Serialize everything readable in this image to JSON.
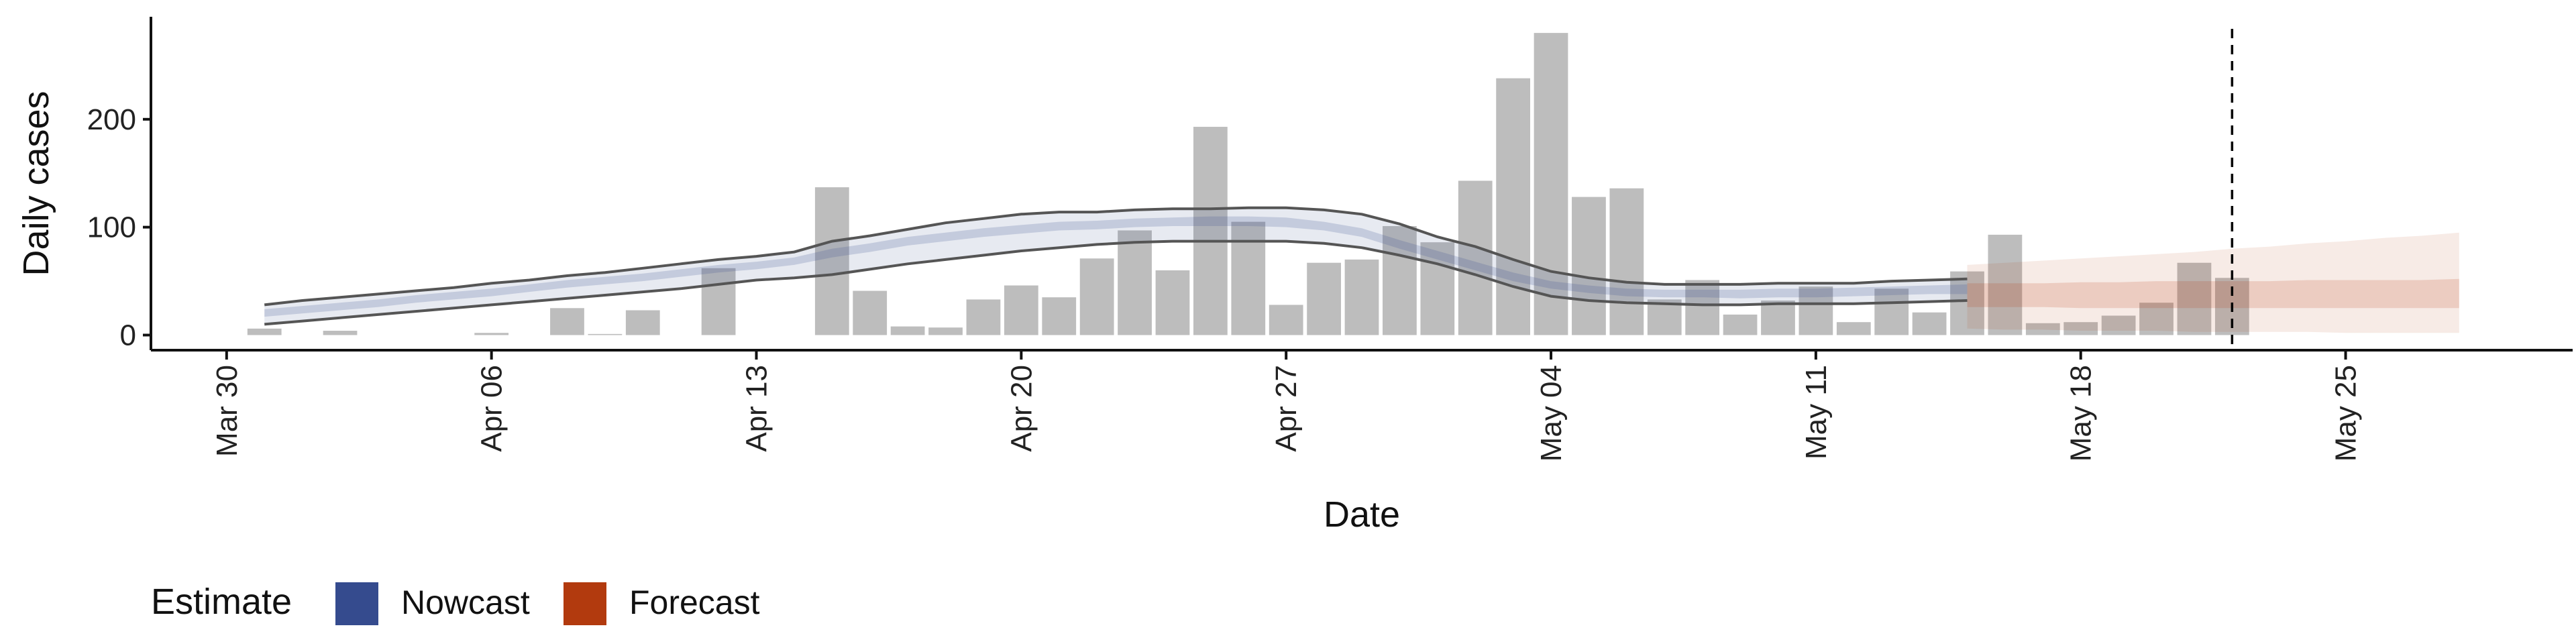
{
  "chart_data": {
    "type": "bar",
    "xlabel": "Date",
    "ylabel": "Daily cases",
    "x_range": [
      "2020-03-28",
      "2020-05-31"
    ],
    "ylim": [
      -14,
      295
    ],
    "y_ticks": [
      0,
      100,
      200
    ],
    "x_ticks": [
      {
        "date": "2020-03-30",
        "label": "Mar 30"
      },
      {
        "date": "2020-04-06",
        "label": "Apr 06"
      },
      {
        "date": "2020-04-13",
        "label": "Apr 13"
      },
      {
        "date": "2020-04-20",
        "label": "Apr 20"
      },
      {
        "date": "2020-04-27",
        "label": "Apr 27"
      },
      {
        "date": "2020-05-04",
        "label": "May 04"
      },
      {
        "date": "2020-05-11",
        "label": "May 11"
      },
      {
        "date": "2020-05-18",
        "label": "May 18"
      },
      {
        "date": "2020-05-25",
        "label": "May 25"
      }
    ],
    "bars": {
      "dates": [
        "2020-03-31",
        "2020-04-01",
        "2020-04-02",
        "2020-04-03",
        "2020-04-04",
        "2020-04-05",
        "2020-04-06",
        "2020-04-07",
        "2020-04-08",
        "2020-04-09",
        "2020-04-10",
        "2020-04-11",
        "2020-04-12",
        "2020-04-13",
        "2020-04-14",
        "2020-04-15",
        "2020-04-16",
        "2020-04-17",
        "2020-04-18",
        "2020-04-19",
        "2020-04-20",
        "2020-04-21",
        "2020-04-22",
        "2020-04-23",
        "2020-04-24",
        "2020-04-25",
        "2020-04-26",
        "2020-04-27",
        "2020-04-28",
        "2020-04-29",
        "2020-04-30",
        "2020-05-01",
        "2020-05-02",
        "2020-05-03",
        "2020-05-04",
        "2020-05-05",
        "2020-05-06",
        "2020-05-07",
        "2020-05-08",
        "2020-05-09",
        "2020-05-10",
        "2020-05-11",
        "2020-05-12",
        "2020-05-13",
        "2020-05-14",
        "2020-05-15",
        "2020-05-16",
        "2020-05-17",
        "2020-05-18",
        "2020-05-19",
        "2020-05-20",
        "2020-05-21",
        "2020-05-22"
      ],
      "values": [
        6,
        0,
        4,
        0,
        0,
        0,
        2,
        0,
        25,
        1,
        23,
        0,
        62,
        0,
        0,
        137,
        41,
        8,
        7,
        33,
        46,
        35,
        71,
        97,
        60,
        193,
        105,
        28,
        67,
        70,
        101,
        86,
        143,
        238,
        280,
        128,
        136,
        33,
        51,
        19,
        32,
        45,
        12,
        43,
        21,
        59,
        93,
        11,
        12,
        18,
        30,
        67,
        53
      ]
    },
    "nowcast": {
      "dates": [
        "2020-03-31",
        "2020-04-01",
        "2020-04-02",
        "2020-04-03",
        "2020-04-04",
        "2020-04-05",
        "2020-04-06",
        "2020-04-07",
        "2020-04-08",
        "2020-04-09",
        "2020-04-10",
        "2020-04-11",
        "2020-04-12",
        "2020-04-13",
        "2020-04-14",
        "2020-04-15",
        "2020-04-16",
        "2020-04-17",
        "2020-04-18",
        "2020-04-19",
        "2020-04-20",
        "2020-04-21",
        "2020-04-22",
        "2020-04-23",
        "2020-04-24",
        "2020-04-25",
        "2020-04-26",
        "2020-04-27",
        "2020-04-28",
        "2020-04-29",
        "2020-04-30",
        "2020-05-01",
        "2020-05-02",
        "2020-05-03",
        "2020-05-04",
        "2020-05-05",
        "2020-05-06",
        "2020-05-07",
        "2020-05-08",
        "2020-05-09",
        "2020-05-10",
        "2020-05-11",
        "2020-05-12",
        "2020-05-13",
        "2020-05-14",
        "2020-05-15"
      ],
      "lower_90": [
        10,
        13,
        16,
        19,
        22,
        25,
        28,
        31,
        34,
        37,
        40,
        43,
        47,
        51,
        53,
        56,
        61,
        66,
        70,
        74,
        78,
        81,
        84,
        86,
        87,
        87,
        87,
        87,
        85,
        81,
        74,
        66,
        56,
        45,
        36,
        32,
        30,
        29,
        28,
        28,
        29,
        29,
        29,
        30,
        31,
        32
      ],
      "lower_50": [
        17,
        20,
        23,
        26,
        30,
        33,
        36,
        40,
        44,
        47,
        50,
        54,
        58,
        61,
        65,
        72,
        77,
        83,
        87,
        91,
        94,
        97,
        98,
        100,
        101,
        101,
        101,
        100,
        97,
        91,
        80,
        70,
        60,
        50,
        43,
        39,
        36,
        35,
        35,
        34,
        35,
        35,
        36,
        37,
        38,
        38
      ],
      "upper_50": [
        24,
        27,
        30,
        33,
        37,
        40,
        43,
        47,
        51,
        54,
        57,
        61,
        65,
        68,
        72,
        80,
        85,
        91,
        95,
        99,
        102,
        105,
        106,
        108,
        109,
        110,
        110,
        109,
        105,
        99,
        88,
        78,
        68,
        58,
        50,
        46,
        43,
        42,
        42,
        42,
        43,
        43,
        44,
        45,
        46,
        47
      ],
      "upper_90": [
        28,
        32,
        35,
        38,
        41,
        44,
        48,
        51,
        55,
        58,
        62,
        66,
        70,
        73,
        77,
        87,
        92,
        98,
        104,
        108,
        112,
        114,
        114,
        116,
        117,
        117,
        118,
        118,
        116,
        112,
        103,
        91,
        82,
        70,
        59,
        53,
        49,
        47,
        47,
        47,
        48,
        48,
        48,
        50,
        51,
        52
      ]
    },
    "forecast": {
      "dates": [
        "2020-05-15",
        "2020-05-16",
        "2020-05-17",
        "2020-05-18",
        "2020-05-19",
        "2020-05-20",
        "2020-05-21",
        "2020-05-22",
        "2020-05-23",
        "2020-05-24",
        "2020-05-25",
        "2020-05-26",
        "2020-05-27",
        "2020-05-28"
      ],
      "lower_90": [
        6,
        5,
        5,
        4,
        4,
        4,
        3,
        3,
        3,
        3,
        2,
        2,
        2,
        2
      ],
      "lower_50": [
        26,
        26,
        26,
        25,
        25,
        25,
        25,
        25,
        25,
        25,
        25,
        25,
        25,
        25
      ],
      "upper_50": [
        48,
        48,
        48,
        49,
        49,
        50,
        50,
        50,
        50,
        51,
        51,
        51,
        51,
        52
      ],
      "upper_90": [
        65,
        67,
        69,
        71,
        73,
        75,
        77,
        80,
        82,
        85,
        87,
        90,
        92,
        95
      ]
    },
    "vline_date": "2020-05-22",
    "colors": {
      "bars": "#bdbdbd",
      "nowcast": "#3a4f8f",
      "forecast": "#b5360e",
      "outline": "#555555",
      "axis": "#111111"
    },
    "legend": {
      "title": "Estimate",
      "placement": "bottom-left",
      "items": [
        {
          "label": "Nowcast",
          "color": "#354b8e"
        },
        {
          "label": "Forecast",
          "color": "#b23a0e"
        }
      ]
    }
  }
}
